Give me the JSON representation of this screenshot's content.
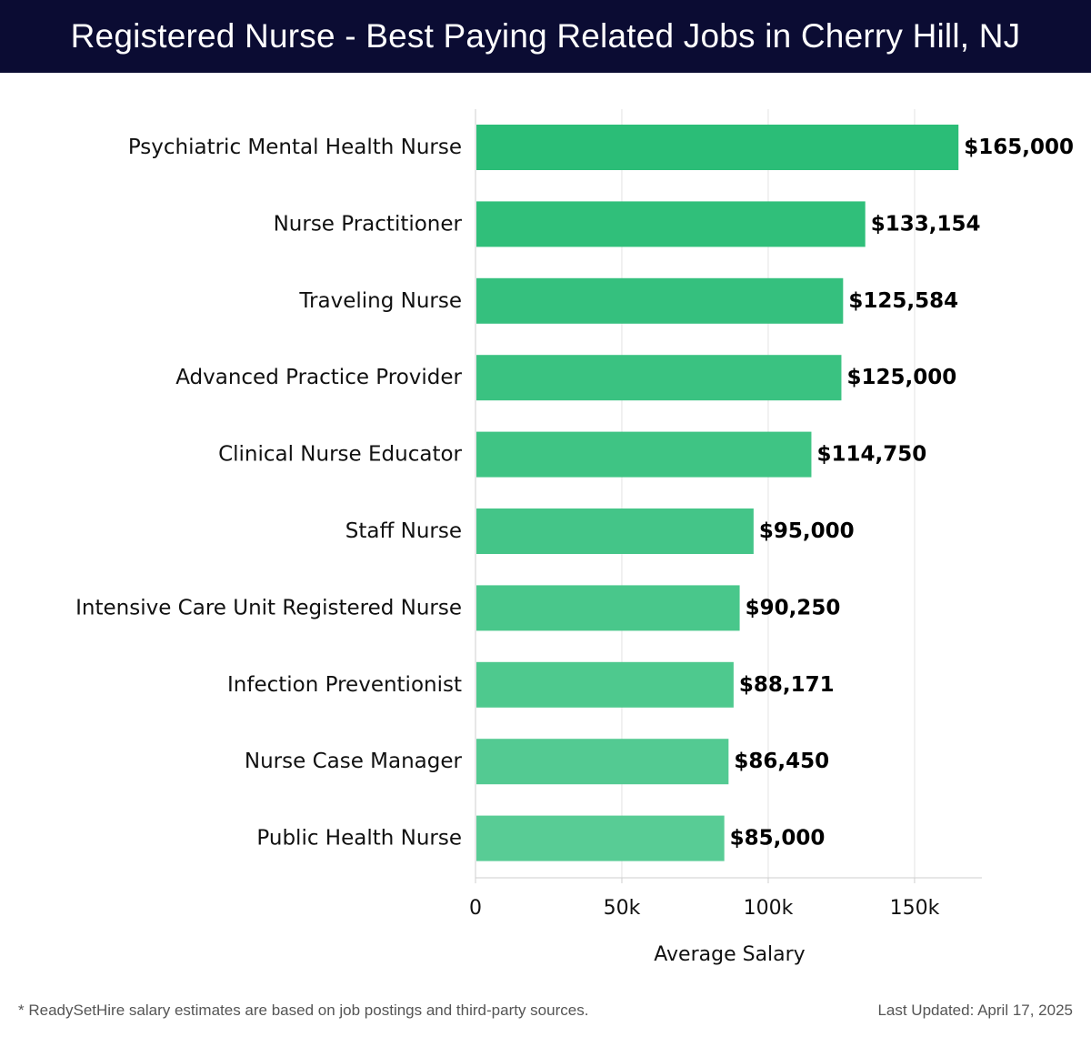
{
  "header": {
    "title": "Registered Nurse - Best Paying Related Jobs in Cherry Hill, NJ"
  },
  "footer": {
    "note": "* ReadySetHire salary estimates are based on job postings and third-party sources.",
    "updated": "Last Updated: April 17, 2025"
  },
  "colors": {
    "header_bg": "#0b0c33",
    "bar_top": "#2bbd77",
    "bar_bottom": "#58cc95",
    "grid": "#e3e3e3"
  },
  "chart_data": {
    "type": "bar",
    "orientation": "horizontal",
    "title": "Registered Nurse - Best Paying Related Jobs in Cherry Hill, NJ",
    "xlabel": "Average Salary",
    "ylabel": "",
    "xlim": [
      0,
      173000
    ],
    "xticks": [
      0,
      50000,
      100000,
      150000
    ],
    "xtick_labels": [
      "0",
      "50k",
      "100k",
      "150k"
    ],
    "grid": "vertical",
    "categories": [
      "Psychiatric Mental Health Nurse",
      "Nurse Practitioner",
      "Traveling Nurse",
      "Advanced Practice Provider",
      "Clinical Nurse Educator",
      "Staff Nurse",
      "Intensive Care Unit Registered Nurse",
      "Infection Preventionist",
      "Nurse Case Manager",
      "Public Health Nurse"
    ],
    "values": [
      165000,
      133154,
      125584,
      125000,
      114750,
      95000,
      90250,
      88171,
      86450,
      85000
    ],
    "value_labels": [
      "$165,000",
      "$133,154",
      "$125,584",
      "$125,000",
      "$114,750",
      "$95,000",
      "$90,250",
      "$88,171",
      "$86,450",
      "$85,000"
    ]
  }
}
